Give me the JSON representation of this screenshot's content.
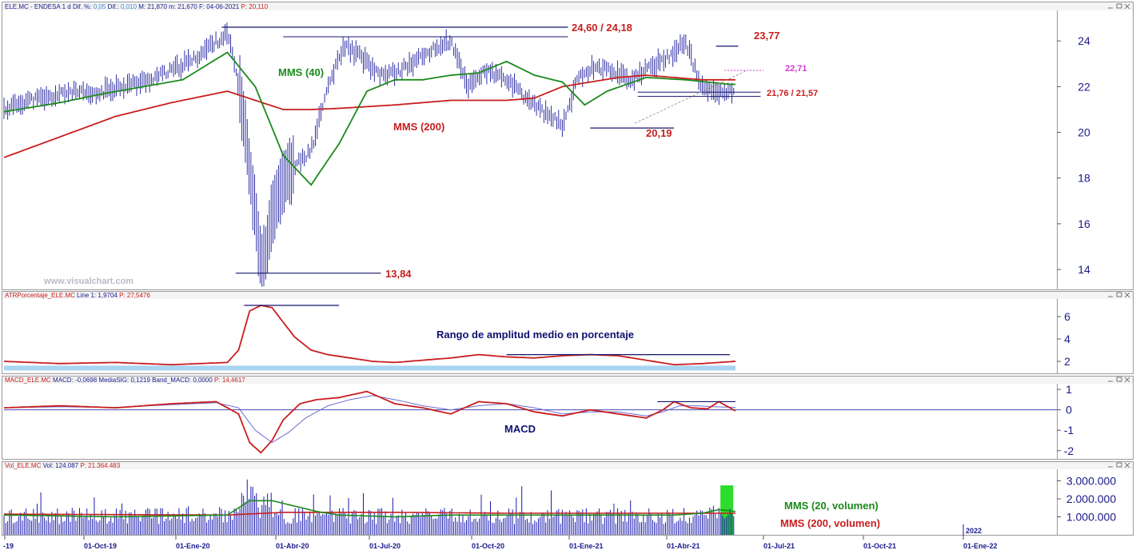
{
  "chart_data": [
    {
      "type": "line",
      "panel": "price",
      "header": {
        "symbol": "ELE.MC - ENDESA",
        "period": "1 d",
        "dif_pct_label": "Dif. %:",
        "dif_pct": "0,05",
        "dif_label": "Dif.:",
        "dif": "0,010",
        "max_label": "M:",
        "max": "21,870",
        "min_label": "m:",
        "min": "21,670",
        "date_label": "F:",
        "date": "04-06-2021",
        "price_label": "P:",
        "price": "20,110"
      },
      "ylim": [
        13.2,
        25.3
      ],
      "yticks": [
        14,
        16,
        18,
        20,
        22,
        24
      ],
      "watermark": "www.visualchart.com",
      "series": [
        {
          "name": "MMS (40)",
          "color": "#1b8a1b",
          "x": [
            0,
            5,
            10,
            18,
            25,
            32,
            40,
            45,
            50,
            55,
            60,
            65,
            70,
            75,
            80,
            85,
            90,
            95,
            100,
            104,
            108,
            115,
            122,
            130
          ],
          "y": [
            20.9,
            21.1,
            21.3,
            21.7,
            22.0,
            22.3,
            23.5,
            22.0,
            19.0,
            17.7,
            19.5,
            21.8,
            22.3,
            22.3,
            22.5,
            22.6,
            23.1,
            22.5,
            22.2,
            21.2,
            21.8,
            22.4,
            22.3,
            22.1
          ]
        },
        {
          "name": "MMS (200)",
          "color": "#c81e1e",
          "x": [
            0,
            10,
            20,
            30,
            40,
            45,
            50,
            55,
            60,
            70,
            80,
            90,
            95,
            100,
            105,
            110,
            115,
            120,
            125,
            130
          ],
          "y": [
            18.9,
            19.8,
            20.7,
            21.3,
            21.8,
            21.4,
            21.0,
            21.0,
            21.05,
            21.2,
            21.4,
            21.4,
            21.5,
            22.0,
            22.2,
            22.4,
            22.5,
            22.4,
            22.3,
            22.3
          ]
        }
      ],
      "annotations": [
        {
          "text": "24,60 / 24,18",
          "color": "#c81e1e"
        },
        {
          "text": "23,77",
          "color": "#c81e1e"
        },
        {
          "text": "22,71",
          "color": "#d23cd2"
        },
        {
          "text": "21,76 / 21,57",
          "color": "#c81e1e"
        },
        {
          "text": "20,19",
          "color": "#c81e1e"
        },
        {
          "text": "13,84",
          "color": "#c81e1e"
        },
        {
          "text": "MMS (40)",
          "color": "#1b8a1b"
        },
        {
          "text": "MMS (200)",
          "color": "#c81e1e"
        }
      ],
      "levels": {
        "l2460": 24.6,
        "l2418": 24.18,
        "l2377": 23.77,
        "l2271": 22.71,
        "l2176": 21.76,
        "l2157": 21.57,
        "l2019": 20.19,
        "l1384": 13.84
      },
      "ohlc_close_anchor": {
        "x": [
          0,
          4,
          8,
          12,
          16,
          20,
          25,
          30,
          34,
          37,
          40,
          41,
          42,
          43,
          44,
          45,
          46,
          47,
          48,
          50,
          52,
          55,
          58,
          61,
          64,
          67,
          70,
          73,
          76,
          80,
          83,
          86,
          90,
          93,
          96,
          100,
          103,
          106,
          110,
          112,
          114,
          116,
          119,
          122,
          125,
          127,
          129,
          131
        ],
        "y": [
          21.0,
          21.4,
          21.5,
          21.8,
          21.6,
          22.0,
          22.2,
          22.7,
          23.2,
          23.8,
          24.3,
          23.3,
          22.1,
          20.5,
          18.3,
          16.5,
          14.2,
          15.0,
          16.5,
          17.9,
          18.5,
          19.2,
          22.0,
          23.8,
          23.3,
          22.5,
          22.6,
          23.0,
          23.5,
          24.0,
          22.0,
          22.7,
          22.3,
          21.6,
          21.0,
          20.3,
          22.5,
          22.9,
          22.6,
          22.3,
          22.5,
          22.9,
          23.3,
          24.0,
          21.9,
          21.8,
          21.7,
          21.8
        ]
      }
    },
    {
      "type": "line",
      "panel": "atr",
      "header": {
        "name": "ATRPorcentaje_ELE.MC",
        "line_label": "Line 1:",
        "line": "1,9704",
        "p_label": "P:",
        "p": "27,5476"
      },
      "title": "Rango de amplitud medio en porcentaje",
      "ylim": [
        1.0,
        7.5
      ],
      "yticks": [
        2,
        4,
        6
      ],
      "series": [
        {
          "name": "ATR %",
          "color": "#c81e1e",
          "x": [
            0,
            10,
            20,
            30,
            40,
            42,
            44,
            46,
            48,
            50,
            52,
            55,
            58,
            62,
            66,
            70,
            75,
            80,
            85,
            90,
            95,
            100,
            105,
            110,
            115,
            120,
            125,
            131
          ],
          "y": [
            2.0,
            1.8,
            1.9,
            1.7,
            1.9,
            3.0,
            6.5,
            7.0,
            6.8,
            5.5,
            4.2,
            3.0,
            2.6,
            2.3,
            2.0,
            1.9,
            2.1,
            2.3,
            2.6,
            2.4,
            2.3,
            2.5,
            2.6,
            2.5,
            2.1,
            1.7,
            1.8,
            2.0
          ]
        }
      ],
      "levels": {
        "top_line": 7.0,
        "range_line": 2.6,
        "base_band": 1.4
      }
    },
    {
      "type": "line",
      "panel": "macd",
      "header": {
        "name": "MACD_ELE.MC",
        "macd_label": "MACD:",
        "macd": "-0,0698",
        "signal_label": "MediaSIG:",
        "signal": "0,1219",
        "band_label": "Band_MACD:",
        "band": "0,0000",
        "p_label": "P:",
        "p": "14,4617"
      },
      "title": "MACD",
      "ylim": [
        -2.4,
        1.2
      ],
      "yticks": [
        1,
        0,
        -1,
        -2
      ],
      "series": [
        {
          "name": "MACD",
          "color": "#c81e1e",
          "x": [
            0,
            10,
            20,
            30,
            38,
            42,
            44,
            46,
            48,
            50,
            53,
            56,
            60,
            65,
            70,
            75,
            80,
            85,
            90,
            95,
            100,
            105,
            110,
            115,
            118,
            120,
            123,
            126,
            128,
            131
          ],
          "y": [
            0.1,
            0.2,
            0.1,
            0.3,
            0.4,
            -0.2,
            -1.6,
            -2.1,
            -1.5,
            -0.5,
            0.3,
            0.5,
            0.6,
            0.9,
            0.3,
            0.1,
            -0.2,
            0.4,
            0.3,
            -0.1,
            -0.3,
            0.0,
            -0.2,
            -0.4,
            0.0,
            0.4,
            0.1,
            0.05,
            0.4,
            -0.05
          ]
        },
        {
          "name": "MediaSIG",
          "color": "#6b6bd6",
          "x": [
            0,
            10,
            20,
            30,
            38,
            42,
            45,
            48,
            51,
            54,
            58,
            62,
            66,
            70,
            75,
            80,
            85,
            90,
            95,
            100,
            105,
            110,
            115,
            118,
            121,
            124,
            127,
            131
          ],
          "y": [
            0.1,
            0.15,
            0.12,
            0.25,
            0.35,
            0.1,
            -1.0,
            -1.6,
            -1.1,
            -0.4,
            0.2,
            0.5,
            0.7,
            0.5,
            0.2,
            0.0,
            0.2,
            0.3,
            0.1,
            -0.2,
            -0.1,
            -0.1,
            -0.3,
            -0.1,
            0.2,
            0.2,
            0.15,
            0.12
          ]
        }
      ],
      "levels": {
        "top_line": 0.4
      }
    },
    {
      "type": "bar",
      "panel": "volume",
      "header": {
        "name": "Vol_ELE.MC",
        "vol_label": "Vol:",
        "vol": "124.087",
        "p_label": "P:",
        "p": "21.364.483"
      },
      "ylim": [
        0,
        3600000
      ],
      "yticks": [
        "3.000.000",
        "2.000.000",
        "1.000.000"
      ],
      "ytick_values": [
        3000000,
        2000000,
        1000000
      ],
      "x_tick_labels": [
        "-19",
        "01-Oct-19",
        "01-Ene-20",
        "01-Abr-20",
        "01-Jul-20",
        "01-Oct-20",
        "01-Ene-21",
        "01-Abr-21",
        "01-Jul-21",
        "01-Oct-21",
        "01-Ene-22"
      ],
      "year_marker": "2022",
      "legend": [
        {
          "text": "MMS (20, volumen)",
          "color": "#1b8a1b"
        },
        {
          "text": "MMS (200, volumen)",
          "color": "#c81e1e"
        }
      ],
      "highlight_color": "#2ddc2d",
      "series": [
        {
          "name": "MMS (20, volumen)",
          "color": "#1b8a1b",
          "x": [
            0,
            20,
            40,
            44,
            48,
            52,
            56,
            60,
            70,
            80,
            90,
            100,
            110,
            120,
            125,
            128,
            131
          ],
          "y": [
            1100000,
            1000000,
            1100000,
            1900000,
            1900000,
            1600000,
            1300000,
            1100000,
            1000000,
            1100000,
            1100000,
            1100000,
            1100000,
            1100000,
            1200000,
            1400000,
            1300000
          ]
        },
        {
          "name": "MMS (200, volumen)",
          "color": "#c81e1e",
          "x": [
            0,
            40,
            50,
            70,
            90,
            110,
            131
          ],
          "y": [
            1150000,
            1100000,
            1250000,
            1250000,
            1200000,
            1200000,
            1200000
          ]
        }
      ]
    }
  ]
}
